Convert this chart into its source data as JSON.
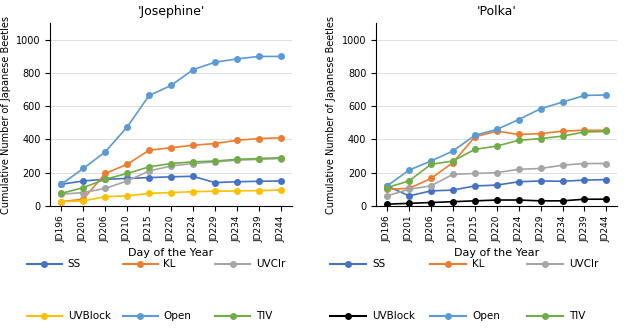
{
  "x_labels": [
    "JD196",
    "JD201",
    "JD206",
    "JD210",
    "JD215",
    "JD220",
    "JD224",
    "JD229",
    "JD234",
    "JD239",
    "JD244"
  ],
  "josephine": {
    "title": "'Josephine'",
    "SS": [
      130,
      150,
      160,
      165,
      170,
      175,
      178,
      140,
      145,
      148,
      150
    ],
    "KL": [
      25,
      40,
      195,
      250,
      335,
      350,
      365,
      375,
      395,
      405,
      410
    ],
    "UVClr": [
      70,
      80,
      105,
      150,
      210,
      240,
      255,
      265,
      275,
      280,
      285
    ],
    "UVBlock": [
      25,
      30,
      55,
      60,
      75,
      80,
      85,
      88,
      90,
      92,
      95
    ],
    "Open": [
      130,
      225,
      325,
      475,
      665,
      725,
      820,
      865,
      885,
      900,
      900
    ],
    "TIV": [
      75,
      110,
      160,
      195,
      235,
      255,
      265,
      270,
      280,
      285,
      290
    ]
  },
  "polka": {
    "title": "'Polka'",
    "SS": [
      120,
      60,
      90,
      95,
      120,
      125,
      145,
      150,
      148,
      155,
      158
    ],
    "KL": [
      100,
      105,
      165,
      260,
      415,
      450,
      430,
      435,
      450,
      455,
      455
    ],
    "UVClr": [
      60,
      100,
      120,
      190,
      195,
      200,
      220,
      225,
      245,
      255,
      255
    ],
    "UVBlock": [
      10,
      15,
      20,
      25,
      30,
      35,
      35,
      30,
      30,
      40,
      40
    ],
    "Open": [
      120,
      215,
      270,
      330,
      425,
      460,
      520,
      585,
      625,
      665,
      668
    ],
    "TIV": [
      110,
      150,
      250,
      270,
      340,
      360,
      395,
      405,
      420,
      445,
      448
    ]
  },
  "colors": {
    "SS": "#4472C4",
    "KL": "#ED7D31",
    "UVClr": "#A5A5A5",
    "UVBlock_jos": "#FFC000",
    "UVBlock_pol": "#000000",
    "Open": "#5B9BD5",
    "TIV": "#70AD47"
  },
  "ylabel": "Cumulative Number of Japanese Beetles",
  "xlabel": "Day of the Year",
  "ylim": [
    0,
    1100
  ],
  "yticks": [
    0,
    200,
    400,
    600,
    800,
    1000
  ],
  "marker": "o",
  "markersize": 4
}
